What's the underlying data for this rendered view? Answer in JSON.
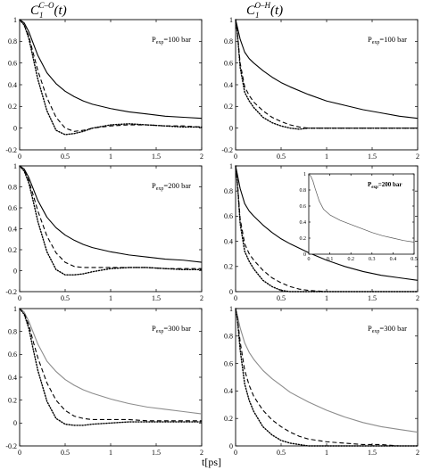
{
  "figure": {
    "col_titles": [
      {
        "base": "C",
        "sub": "1",
        "sup": "C–O",
        "arg": "(t)"
      },
      {
        "base": "C",
        "sub": "1",
        "sup": "O–H",
        "arg": "(t)"
      }
    ],
    "xlabel": "t[ps]"
  },
  "chart_data": [
    {
      "type": "line",
      "panel": "C-O, 100 bar",
      "label": {
        "p": "P",
        "sub": "exp",
        "rest": "=100 bar"
      },
      "xlim": [
        0,
        2
      ],
      "ylim": [
        -0.2,
        1
      ],
      "xticks": [
        0,
        0.5,
        1,
        1.5,
        2
      ],
      "yticks": [
        -0.2,
        0,
        0.2,
        0.4,
        0.6,
        0.8,
        1
      ],
      "series": [
        {
          "style": "solid",
          "color": "#000000",
          "x": [
            0,
            0.05,
            0.1,
            0.15,
            0.2,
            0.3,
            0.4,
            0.5,
            0.6,
            0.7,
            0.8,
            1.0,
            1.2,
            1.4,
            1.6,
            1.8,
            2.0
          ],
          "y": [
            1,
            0.97,
            0.89,
            0.78,
            0.67,
            0.51,
            0.41,
            0.34,
            0.29,
            0.25,
            0.22,
            0.18,
            0.15,
            0.13,
            0.11,
            0.1,
            0.09
          ]
        },
        {
          "style": "dashed",
          "color": "#000000",
          "x": [
            0,
            0.05,
            0.1,
            0.15,
            0.2,
            0.3,
            0.4,
            0.5,
            0.6,
            0.7,
            0.8,
            1.0,
            1.2,
            1.4,
            1.6,
            1.8,
            2.0
          ],
          "y": [
            1,
            0.95,
            0.85,
            0.69,
            0.53,
            0.28,
            0.1,
            0.0,
            -0.03,
            -0.02,
            0.0,
            0.02,
            0.03,
            0.03,
            0.02,
            0.02,
            0.01
          ]
        },
        {
          "style": "dotted",
          "color": "#000000",
          "x": [
            0,
            0.05,
            0.1,
            0.15,
            0.2,
            0.3,
            0.4,
            0.5,
            0.6,
            0.7,
            0.8,
            1.0,
            1.2,
            1.4,
            1.6,
            1.8,
            2.0
          ],
          "y": [
            1,
            0.95,
            0.83,
            0.64,
            0.45,
            0.16,
            -0.02,
            -0.06,
            -0.05,
            -0.03,
            0.0,
            0.03,
            0.04,
            0.03,
            0.02,
            0.01,
            0.01
          ]
        }
      ]
    },
    {
      "type": "line",
      "panel": "O-H, 100 bar",
      "label": {
        "p": "P",
        "sub": "exp",
        "rest": "=100 bar"
      },
      "xlim": [
        0,
        2
      ],
      "ylim": [
        -0.2,
        1
      ],
      "xticks": [
        0,
        0.5,
        1,
        1.5,
        2
      ],
      "yticks": [
        -0.2,
        0,
        0.2,
        0.4,
        0.6,
        0.8,
        1
      ],
      "series": [
        {
          "style": "solid",
          "color": "#000000",
          "x": [
            0,
            0.02,
            0.05,
            0.1,
            0.15,
            0.2,
            0.3,
            0.4,
            0.5,
            0.6,
            0.8,
            1.0,
            1.2,
            1.4,
            1.6,
            1.8,
            2.0
          ],
          "y": [
            1,
            0.93,
            0.82,
            0.7,
            0.64,
            0.6,
            0.53,
            0.47,
            0.42,
            0.38,
            0.31,
            0.25,
            0.21,
            0.17,
            0.14,
            0.11,
            0.09
          ]
        },
        {
          "style": "dashed",
          "color": "#000000",
          "x": [
            0,
            0.02,
            0.05,
            0.1,
            0.15,
            0.2,
            0.3,
            0.4,
            0.5,
            0.6,
            0.7,
            0.8,
            1.0,
            1.2,
            1.4,
            1.6,
            1.8,
            2.0
          ],
          "y": [
            1,
            0.88,
            0.6,
            0.38,
            0.3,
            0.24,
            0.16,
            0.1,
            0.06,
            0.03,
            0.01,
            0.0,
            0.0,
            0.0,
            0.0,
            0.0,
            0.0,
            0.0
          ]
        },
        {
          "style": "dotted",
          "color": "#000000",
          "x": [
            0,
            0.02,
            0.05,
            0.1,
            0.15,
            0.2,
            0.3,
            0.4,
            0.5,
            0.6,
            0.7,
            0.8,
            1.0,
            1.2,
            1.4,
            1.6,
            1.8,
            2.0
          ],
          "y": [
            1,
            0.87,
            0.56,
            0.33,
            0.25,
            0.19,
            0.1,
            0.05,
            0.02,
            0.0,
            -0.01,
            0.0,
            0.0,
            0.0,
            0.0,
            0.0,
            0.0,
            0.0
          ]
        }
      ]
    },
    {
      "type": "line",
      "panel": "C-O, 200 bar",
      "label": {
        "p": "P",
        "sub": "exp",
        "rest": "=200 bar"
      },
      "xlim": [
        0,
        2
      ],
      "ylim": [
        -0.2,
        1
      ],
      "xticks": [
        0,
        0.5,
        1,
        1.5,
        2
      ],
      "yticks": [
        -0.2,
        0,
        0.2,
        0.4,
        0.6,
        0.8,
        1
      ],
      "series": [
        {
          "style": "solid",
          "color": "#000000",
          "x": [
            0,
            0.05,
            0.1,
            0.15,
            0.2,
            0.3,
            0.4,
            0.5,
            0.6,
            0.7,
            0.8,
            1.0,
            1.2,
            1.4,
            1.6,
            1.8,
            2.0
          ],
          "y": [
            1,
            0.97,
            0.89,
            0.78,
            0.67,
            0.51,
            0.41,
            0.34,
            0.29,
            0.25,
            0.22,
            0.18,
            0.15,
            0.13,
            0.11,
            0.1,
            0.08
          ]
        },
        {
          "style": "dashed",
          "color": "#000000",
          "x": [
            0,
            0.05,
            0.1,
            0.15,
            0.2,
            0.3,
            0.4,
            0.5,
            0.6,
            0.7,
            0.8,
            1.0,
            1.2,
            1.4,
            1.6,
            1.8,
            2.0
          ],
          "y": [
            1,
            0.96,
            0.86,
            0.72,
            0.57,
            0.33,
            0.17,
            0.08,
            0.04,
            0.03,
            0.03,
            0.03,
            0.03,
            0.03,
            0.02,
            0.02,
            0.02
          ]
        },
        {
          "style": "dotted",
          "color": "#000000",
          "x": [
            0,
            0.05,
            0.1,
            0.15,
            0.2,
            0.3,
            0.4,
            0.5,
            0.6,
            0.7,
            0.8,
            1.0,
            1.2,
            1.4,
            1.6,
            1.8,
            2.0
          ],
          "y": [
            1,
            0.95,
            0.84,
            0.66,
            0.47,
            0.18,
            0.01,
            -0.04,
            -0.04,
            -0.03,
            -0.01,
            0.02,
            0.03,
            0.03,
            0.02,
            0.01,
            0.01
          ]
        }
      ]
    },
    {
      "type": "line",
      "panel": "O-H, 200 bar",
      "label": {
        "p": "P",
        "sub": "exp",
        "rest": "=200 bar"
      },
      "xlim": [
        0,
        2
      ],
      "ylim": [
        0,
        1
      ],
      "xticks": [
        0,
        0.5,
        1,
        1.5,
        2
      ],
      "yticks": [
        0,
        0.2,
        0.4,
        0.6,
        0.8,
        1
      ],
      "series": [
        {
          "style": "solid",
          "color": "#000000",
          "x": [
            0,
            0.02,
            0.05,
            0.1,
            0.15,
            0.2,
            0.3,
            0.4,
            0.5,
            0.6,
            0.8,
            1.0,
            1.2,
            1.4,
            1.6,
            1.8,
            2.0
          ],
          "y": [
            1,
            0.93,
            0.82,
            0.7,
            0.64,
            0.6,
            0.53,
            0.47,
            0.42,
            0.38,
            0.31,
            0.25,
            0.2,
            0.16,
            0.13,
            0.11,
            0.09
          ]
        },
        {
          "style": "dashed",
          "color": "#000000",
          "x": [
            0,
            0.02,
            0.05,
            0.1,
            0.15,
            0.2,
            0.3,
            0.4,
            0.5,
            0.6,
            0.7,
            0.8,
            1.0,
            1.2,
            1.4,
            1.6,
            1.8,
            2.0
          ],
          "y": [
            1,
            0.87,
            0.58,
            0.38,
            0.3,
            0.25,
            0.17,
            0.11,
            0.07,
            0.04,
            0.02,
            0.01,
            0.0,
            0.0,
            0.0,
            0.0,
            0.0,
            0.0
          ]
        },
        {
          "style": "dotted",
          "color": "#000000",
          "x": [
            0,
            0.02,
            0.05,
            0.1,
            0.15,
            0.2,
            0.3,
            0.4,
            0.5,
            0.6,
            0.7,
            0.8,
            1.0,
            1.2,
            1.4,
            1.6,
            1.8,
            2.0
          ],
          "y": [
            1,
            0.86,
            0.54,
            0.32,
            0.24,
            0.18,
            0.09,
            0.04,
            0.01,
            0.0,
            0.0,
            0.0,
            0.0,
            0.0,
            0.0,
            0.0,
            0.0,
            0.0
          ]
        }
      ],
      "inset": {
        "label": {
          "p": "P",
          "sub": "exp",
          "rest": "=200 bar"
        },
        "xlim": [
          0,
          0.5
        ],
        "ylim": [
          0,
          1
        ],
        "xticks": [
          0,
          0.1,
          0.2,
          0.3,
          0.4,
          0.5
        ],
        "yticks": [
          0,
          0.2,
          0.4,
          0.6,
          0.8,
          1
        ],
        "series": [
          {
            "style": "solid",
            "color": "#555555",
            "x": [
              0,
              0.01,
              0.02,
              0.03,
              0.05,
              0.07,
              0.1,
              0.15,
              0.2,
              0.25,
              0.3,
              0.35,
              0.4,
              0.45,
              0.5
            ],
            "y": [
              1,
              0.97,
              0.91,
              0.82,
              0.66,
              0.56,
              0.49,
              0.42,
              0.37,
              0.32,
              0.27,
              0.23,
              0.2,
              0.17,
              0.15
            ]
          }
        ]
      }
    },
    {
      "type": "line",
      "panel": "C-O, 300 bar",
      "label": {
        "p": "P",
        "sub": "exp",
        "rest": "=300 bar"
      },
      "xlim": [
        0,
        2
      ],
      "ylim": [
        -0.2,
        1
      ],
      "xticks": [
        0,
        0.5,
        1,
        1.5,
        2
      ],
      "yticks": [
        -0.2,
        0,
        0.2,
        0.4,
        0.6,
        0.8,
        1
      ],
      "series": [
        {
          "style": "solid",
          "color": "#8c8c8c",
          "x": [
            0,
            0.05,
            0.1,
            0.15,
            0.2,
            0.3,
            0.4,
            0.5,
            0.6,
            0.7,
            0.8,
            1.0,
            1.2,
            1.4,
            1.6,
            1.8,
            2.0
          ],
          "y": [
            1,
            0.97,
            0.89,
            0.79,
            0.69,
            0.54,
            0.45,
            0.38,
            0.33,
            0.29,
            0.26,
            0.21,
            0.17,
            0.14,
            0.12,
            0.1,
            0.08
          ]
        },
        {
          "style": "dashed",
          "color": "#000000",
          "x": [
            0,
            0.05,
            0.1,
            0.15,
            0.2,
            0.3,
            0.4,
            0.5,
            0.6,
            0.7,
            0.8,
            1.0,
            1.2,
            1.4,
            1.6,
            1.8,
            2.0
          ],
          "y": [
            1,
            0.96,
            0.86,
            0.71,
            0.57,
            0.35,
            0.2,
            0.11,
            0.06,
            0.04,
            0.03,
            0.03,
            0.03,
            0.02,
            0.02,
            0.02,
            0.02
          ]
        },
        {
          "style": "dotted",
          "color": "#000000",
          "x": [
            0,
            0.05,
            0.1,
            0.15,
            0.2,
            0.3,
            0.4,
            0.5,
            0.6,
            0.7,
            0.8,
            1.0,
            1.2,
            1.4,
            1.6,
            1.8,
            2.0
          ],
          "y": [
            1,
            0.95,
            0.83,
            0.64,
            0.46,
            0.19,
            0.04,
            -0.01,
            -0.02,
            -0.02,
            -0.01,
            0.0,
            0.01,
            0.01,
            0.01,
            0.01,
            0.01
          ]
        }
      ]
    },
    {
      "type": "line",
      "panel": "O-H, 300 bar",
      "label": {
        "p": "P",
        "sub": "exp",
        "rest": "=300 bar"
      },
      "xlim": [
        0,
        2
      ],
      "ylim": [
        0,
        1
      ],
      "xticks": [
        0,
        0.5,
        1,
        1.5,
        2
      ],
      "yticks": [
        0,
        0.2,
        0.4,
        0.6,
        0.8,
        1
      ],
      "series": [
        {
          "style": "solid",
          "color": "#8c8c8c",
          "x": [
            0,
            0.02,
            0.05,
            0.1,
            0.15,
            0.2,
            0.3,
            0.4,
            0.5,
            0.6,
            0.8,
            1.0,
            1.2,
            1.4,
            1.6,
            1.8,
            2.0
          ],
          "y": [
            1,
            0.95,
            0.86,
            0.75,
            0.68,
            0.63,
            0.55,
            0.49,
            0.44,
            0.39,
            0.32,
            0.26,
            0.21,
            0.17,
            0.14,
            0.12,
            0.1
          ]
        },
        {
          "style": "dashed",
          "color": "#000000",
          "x": [
            0,
            0.02,
            0.05,
            0.1,
            0.15,
            0.2,
            0.3,
            0.4,
            0.5,
            0.6,
            0.7,
            0.8,
            1.0,
            1.2,
            1.4,
            1.6,
            1.8,
            2.0
          ],
          "y": [
            1,
            0.93,
            0.76,
            0.55,
            0.44,
            0.36,
            0.26,
            0.19,
            0.14,
            0.1,
            0.07,
            0.05,
            0.03,
            0.02,
            0.01,
            0.01,
            0.0,
            0.0
          ]
        },
        {
          "style": "dotted",
          "color": "#000000",
          "x": [
            0,
            0.02,
            0.05,
            0.1,
            0.15,
            0.2,
            0.3,
            0.4,
            0.5,
            0.6,
            0.7,
            0.8,
            1.0,
            1.2,
            1.4,
            1.6,
            1.8,
            2.0
          ],
          "y": [
            1,
            0.92,
            0.7,
            0.45,
            0.33,
            0.25,
            0.14,
            0.08,
            0.04,
            0.02,
            0.01,
            0.0,
            0.0,
            0.0,
            0.0,
            0.0,
            0.0,
            0.0
          ]
        }
      ]
    }
  ]
}
